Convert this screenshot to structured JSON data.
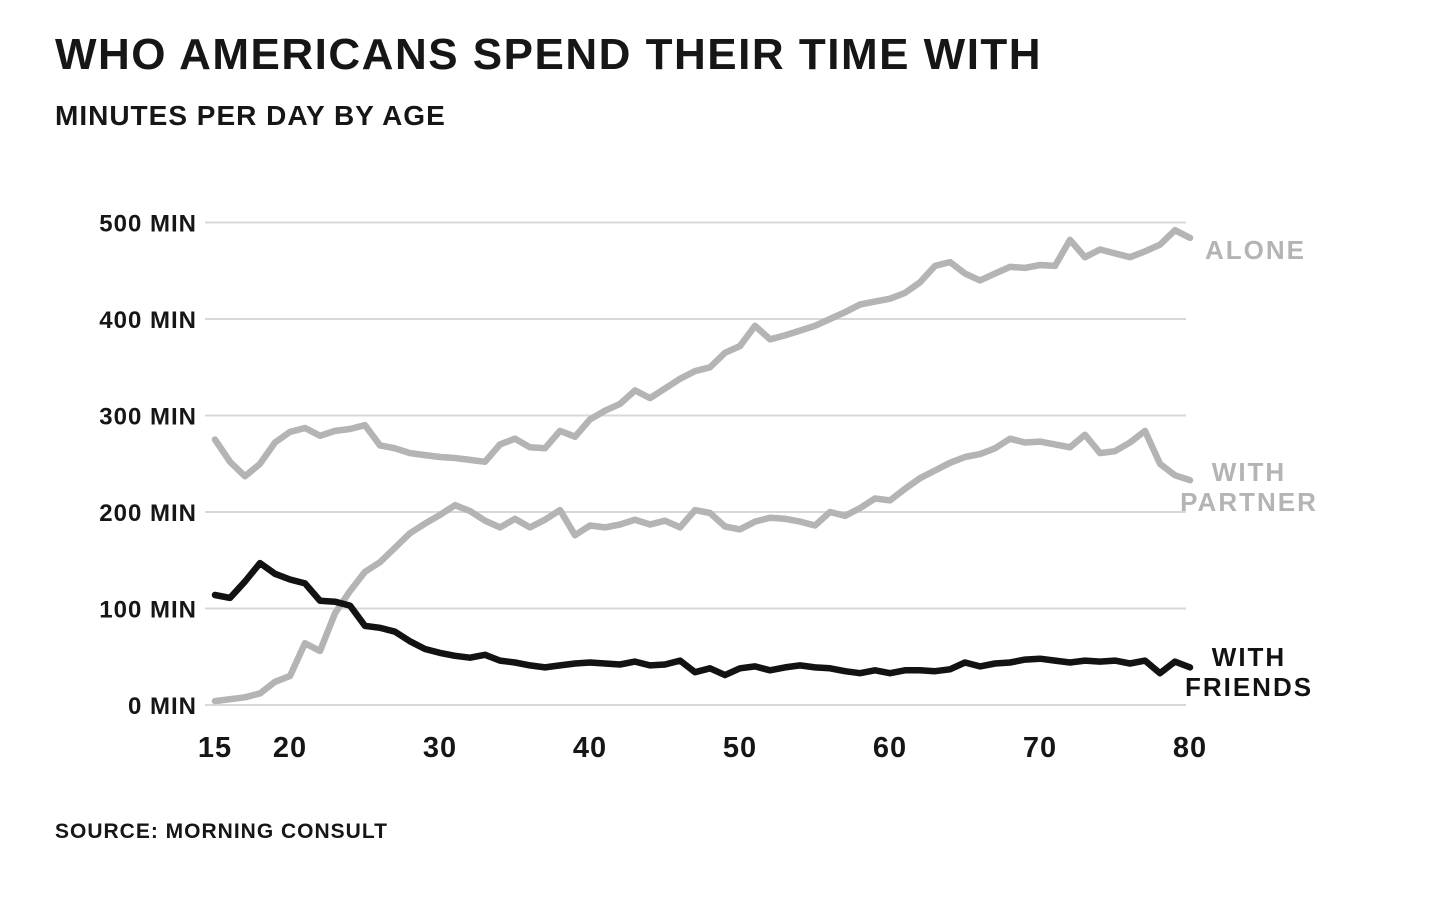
{
  "page": {
    "title": "WHO AMERICANS SPEND THEIR TIME WITH",
    "subtitle": "MINUTES PER DAY BY AGE",
    "source": "SOURCE: MORNING CONSULT"
  },
  "colors": {
    "background": "#ffffff",
    "text": "#161616",
    "gridline": "#d8d8d8",
    "gray": "#b4b4b4",
    "black": "#121212"
  },
  "chart_data": {
    "type": "line",
    "title": "WHO AMERICANS SPEND THEIR TIME WITH",
    "subtitle": "MINUTES PER DAY BY AGE",
    "xlabel": "Age",
    "ylabel": "Minutes per day",
    "xlim": [
      15,
      80
    ],
    "ylim": [
      0,
      500
    ],
    "grid": "horizontal",
    "legend_position": "right-end-labels",
    "x_tick_values": [
      15,
      20,
      30,
      40,
      50,
      60,
      70,
      80
    ],
    "x_tick_labels": [
      "15",
      "20",
      "30",
      "40",
      "50",
      "60",
      "70",
      "80"
    ],
    "y_tick_values": [
      0,
      100,
      200,
      300,
      400,
      500
    ],
    "y_tick_labels": [
      "0 MIN",
      "100 MIN",
      "200 MIN",
      "300 MIN",
      "400 MIN",
      "500 MIN"
    ],
    "x": [
      15,
      16,
      17,
      18,
      19,
      20,
      21,
      22,
      23,
      24,
      25,
      26,
      27,
      28,
      29,
      30,
      31,
      32,
      33,
      34,
      35,
      36,
      37,
      38,
      39,
      40,
      41,
      42,
      43,
      44,
      45,
      46,
      47,
      48,
      49,
      50,
      51,
      52,
      53,
      54,
      55,
      56,
      57,
      58,
      59,
      60,
      61,
      62,
      63,
      64,
      65,
      66,
      67,
      68,
      69,
      70,
      71,
      72,
      73,
      74,
      75,
      76,
      77,
      78,
      79,
      80
    ],
    "series": [
      {
        "name": "Alone",
        "label_lines": [
          "ALONE"
        ],
        "color_key": "gray",
        "values": [
          275,
          252,
          237,
          250,
          272,
          283,
          287,
          279,
          284,
          286,
          290,
          269,
          266,
          261,
          259,
          257,
          256,
          254,
          252,
          270,
          276,
          267,
          266,
          284,
          278,
          296,
          305,
          312,
          326,
          318,
          328,
          338,
          346,
          350,
          365,
          372,
          393,
          379,
          383,
          388,
          393,
          400,
          407,
          415,
          418,
          421,
          427,
          438,
          455,
          459,
          447,
          440,
          447,
          454,
          453,
          456,
          455,
          482,
          464,
          472,
          468,
          464,
          470,
          477,
          492,
          484
        ]
      },
      {
        "name": "With partner",
        "label_lines": [
          "WITH",
          "PARTNER"
        ],
        "color_key": "gray",
        "values": [
          4,
          6,
          8,
          12,
          24,
          30,
          64,
          56,
          95,
          118,
          138,
          148,
          163,
          178,
          188,
          197,
          207,
          201,
          191,
          184,
          193,
          184,
          192,
          202,
          176,
          186,
          184,
          187,
          192,
          187,
          191,
          184,
          202,
          199,
          185,
          182,
          190,
          194,
          193,
          190,
          186,
          200,
          196,
          204,
          214,
          212,
          224,
          235,
          243,
          251,
          257,
          260,
          266,
          276,
          272,
          273,
          270,
          267,
          280,
          261,
          263,
          272,
          284,
          250,
          238,
          233
        ]
      },
      {
        "name": "With friends",
        "label_lines": [
          "WITH",
          "FRIENDS"
        ],
        "color_key": "black",
        "values": [
          114,
          111,
          128,
          147,
          136,
          130,
          126,
          108,
          107,
          103,
          82,
          80,
          76,
          66,
          58,
          54,
          51,
          49,
          52,
          46,
          44,
          41,
          39,
          41,
          43,
          44,
          43,
          42,
          45,
          41,
          42,
          46,
          34,
          38,
          31,
          38,
          40,
          36,
          39,
          41,
          39,
          38,
          35,
          33,
          36,
          33,
          36,
          36,
          35,
          37,
          44,
          40,
          43,
          44,
          47,
          48,
          46,
          44,
          46,
          45,
          46,
          43,
          46,
          33,
          45,
          39
        ]
      }
    ]
  }
}
